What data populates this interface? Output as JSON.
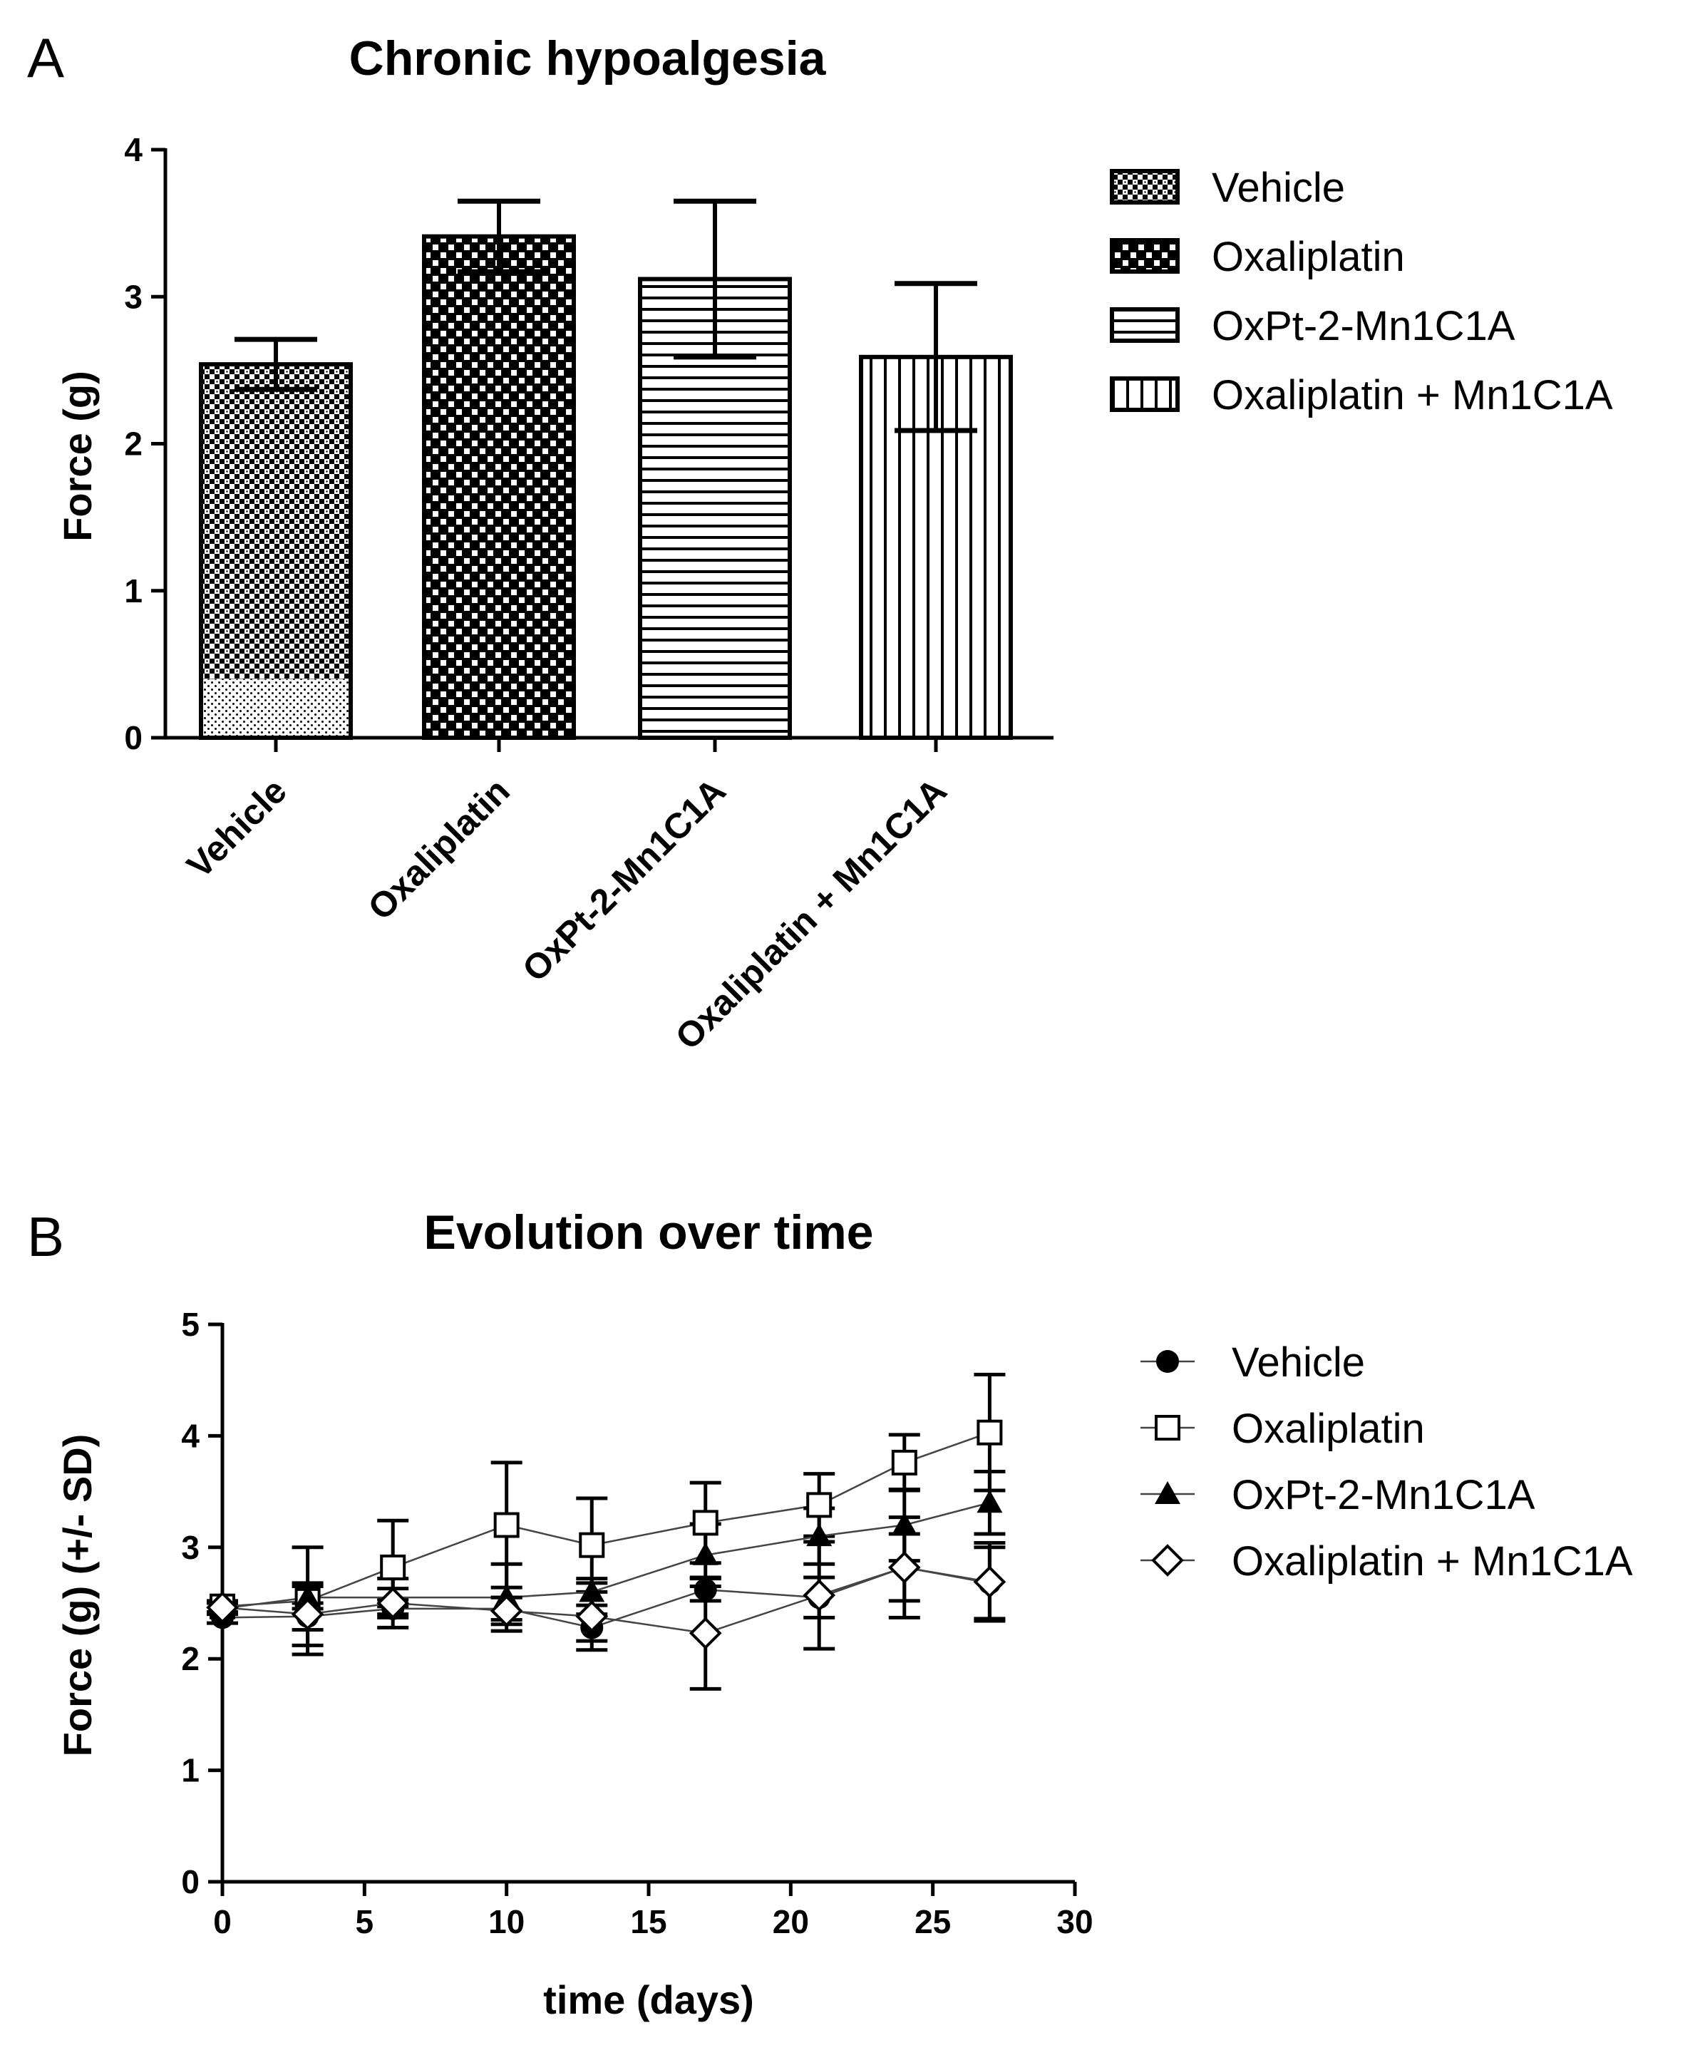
{
  "panels": {
    "a_letter": "A",
    "b_letter": "B"
  },
  "chart_data": [
    {
      "type": "bar",
      "title": "Chronic hypoalgesia",
      "xlabel": "",
      "ylabel": "Force (g)",
      "ylim": [
        0,
        4
      ],
      "yticks": [
        0,
        1,
        2,
        3,
        4
      ],
      "categories": [
        "Vehicle",
        "Oxaliplatin",
        "OxPt-2-Mn1C1A",
        "Oxaliplatin + Mn1C1A"
      ],
      "values": [
        2.54,
        3.41,
        3.12,
        2.59
      ],
      "errors": [
        0.17,
        0.24,
        0.53,
        0.5
      ],
      "legend": [
        "Vehicle",
        "Oxaliplatin",
        "OxPt-2-Mn1C1A",
        "Oxaliplatin + Mn1C1A"
      ],
      "legend_position": "right"
    },
    {
      "type": "line",
      "title": "Evolution over time",
      "xlabel": "time (days)",
      "ylabel": "Force (g) (+/- SD)",
      "xlim": [
        0,
        30
      ],
      "ylim": [
        0,
        5
      ],
      "xticks": [
        0,
        5,
        10,
        15,
        20,
        25,
        30
      ],
      "yticks": [
        0,
        1,
        2,
        3,
        4,
        5
      ],
      "x": [
        0,
        3,
        6,
        10,
        13,
        17,
        21,
        24,
        27
      ],
      "series": [
        {
          "name": "Vehicle",
          "marker": "circle-filled",
          "values": [
            2.37,
            2.38,
            2.45,
            2.45,
            2.28,
            2.62,
            2.55,
            2.82,
            2.68
          ],
          "errors": [
            0.05,
            0.12,
            0.08,
            0.1,
            0.12,
            0.1,
            0.18,
            0.3,
            0.32
          ]
        },
        {
          "name": "Oxaliplatin",
          "marker": "square-open",
          "values": [
            2.47,
            2.52,
            2.82,
            3.2,
            3.02,
            3.22,
            3.38,
            3.76,
            4.03
          ],
          "errors": [
            0.05,
            0.48,
            0.42,
            0.56,
            0.42,
            0.36,
            0.28,
            0.25,
            0.52
          ]
        },
        {
          "name": "OxPt-2-Mn1C1A",
          "marker": "triangle-filled",
          "values": [
            2.45,
            2.55,
            2.55,
            2.55,
            2.6,
            2.93,
            3.1,
            3.2,
            3.4
          ],
          "errors": [
            0.05,
            0.1,
            0.08,
            0.3,
            0.12,
            0.28,
            0.25,
            0.32,
            0.28
          ]
        },
        {
          "name": "Oxaliplatin + Mn1C1A",
          "marker": "diamond-open",
          "values": [
            2.46,
            2.4,
            2.5,
            2.43,
            2.38,
            2.23,
            2.57,
            2.82,
            2.69
          ],
          "errors": [
            0.05,
            0.28,
            0.22,
            0.12,
            0.3,
            0.5,
            0.48,
            0.45,
            0.35
          ]
        }
      ],
      "legend_position": "right"
    }
  ]
}
